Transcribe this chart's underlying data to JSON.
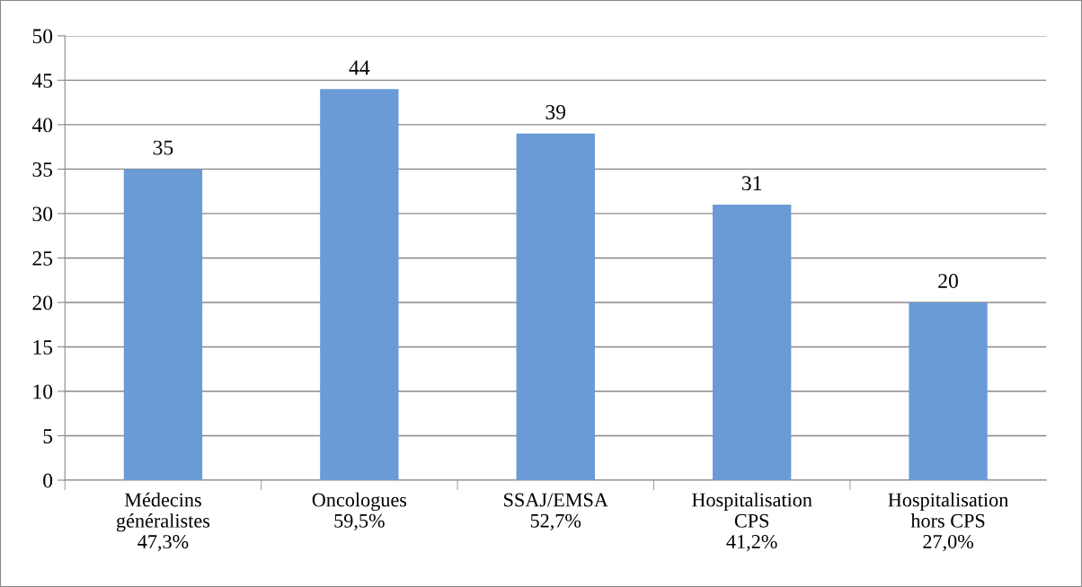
{
  "chart_data": {
    "type": "bar",
    "categories": [
      "Médecins\ngénéralistes\n47,3%",
      "Oncologues\n59,5%",
      "SSAJ/EMSA\n52,7%",
      "Hospitalisation\nCPS\n41,2%",
      "Hospitalisation\nhors CPS\n27,0%"
    ],
    "values": [
      35,
      44,
      39,
      31,
      20
    ],
    "color": "#6a9bd6",
    "ylim": [
      0,
      50
    ],
    "yticks": [
      0,
      5,
      10,
      15,
      20,
      25,
      30,
      35,
      40,
      45,
      50
    ],
    "grid": "y",
    "data_labels": true
  }
}
